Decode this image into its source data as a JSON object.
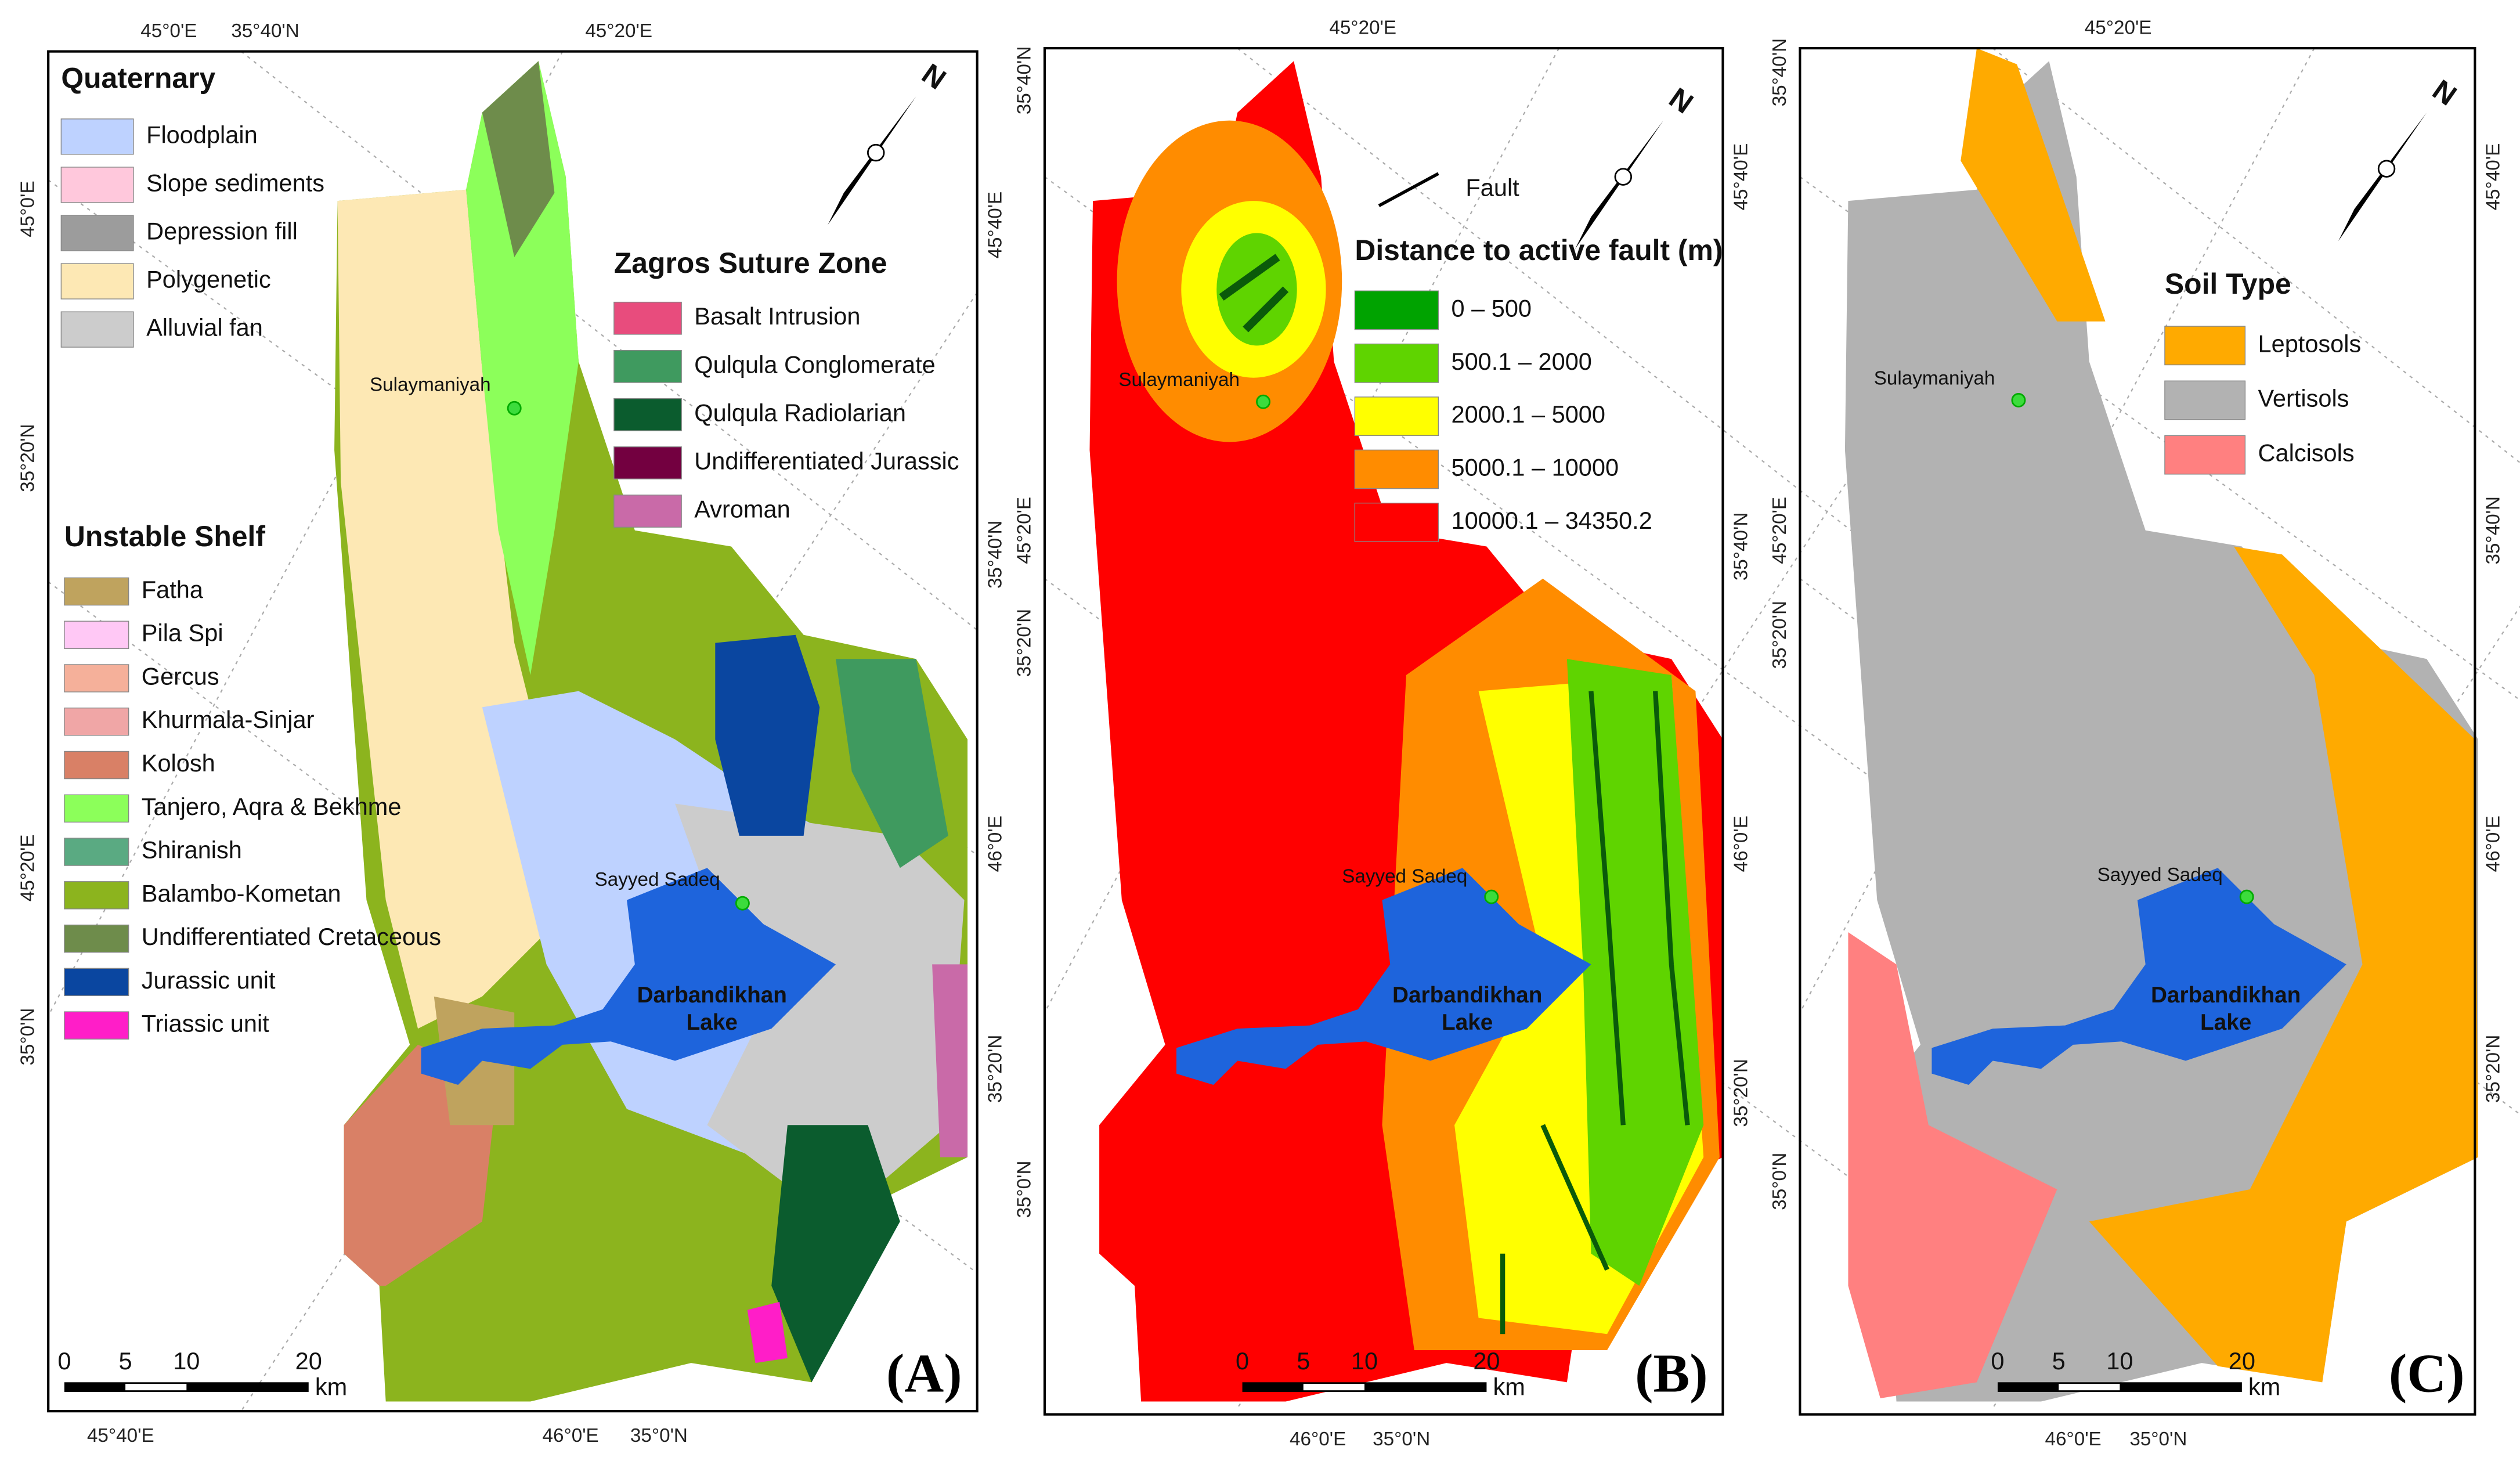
{
  "panels": [
    {
      "letter": "(A)",
      "coords": {
        "top": [
          "45°0'E",
          "35°40'N",
          "45°20'E"
        ],
        "bottom": [
          "45°40'E",
          "46°0'E",
          "35°0'N"
        ],
        "left": [
          "45°0'E",
          "35°20'N",
          "45°20'E",
          "35°0'N"
        ],
        "right": [
          "45°40'E",
          "35°40'N",
          "46°0'E",
          "35°20'N"
        ]
      },
      "north": "N",
      "places": [
        "Sulaymaniyah",
        "Sayyed Sadeq"
      ],
      "lake": [
        "Darbandikhan",
        "Lake"
      ],
      "scale": [
        "0",
        "5",
        "10",
        "20",
        "km"
      ],
      "legends": [
        {
          "title": "Quaternary",
          "items": [
            {
              "name": "Floodplain",
              "color": "#bed2ff"
            },
            {
              "name": "Slope sediments",
              "color": "#ffc8dc"
            },
            {
              "name": "Depression fill",
              "color": "#9c9c9c"
            },
            {
              "name": "Polygenetic",
              "color": "#fde8b4"
            },
            {
              "name": "Alluvial fan",
              "color": "#cccccc"
            }
          ]
        },
        {
          "title": "Zagros Suture Zone",
          "items": [
            {
              "name": "Basalt Intrusion",
              "color": "#e84c7d"
            },
            {
              "name": "Qulqula Conglomerate",
              "color": "#3f9a5f"
            },
            {
              "name": "Qulqula Radiolarian",
              "color": "#0b5c2e"
            },
            {
              "name": "Undifferentiated Jurassic",
              "color": "#730040"
            },
            {
              "name": "Avroman",
              "color": "#c96aa8"
            }
          ]
        },
        {
          "title": "Unstable Shelf",
          "items": [
            {
              "name": "Fatha",
              "color": "#bfa35e"
            },
            {
              "name": "Pila Spi",
              "color": "#ffc8f5"
            },
            {
              "name": "Gercus",
              "color": "#f5b09a"
            },
            {
              "name": "Khurmala-Sinjar",
              "color": "#f0a6a6"
            },
            {
              "name": "Kolosh",
              "color": "#d98066"
            },
            {
              "name": "Tanjero, Aqra & Bekhme",
              "color": "#8cff5a"
            },
            {
              "name": "Shiranish",
              "color": "#5aaa82"
            },
            {
              "name": "Balambo-Kometan",
              "color": "#8cb41e"
            },
            {
              "name": "Undifferentiated Cretaceous",
              "color": "#6e8c4b"
            },
            {
              "name": "Jurassic unit",
              "color": "#0a46a0"
            },
            {
              "name": "Triassic unit",
              "color": "#ff1ec8"
            }
          ]
        }
      ]
    },
    {
      "letter": "(B)",
      "coords": {
        "top": [
          "45°20'E"
        ],
        "bottom": [
          "46°0'E",
          "35°0'N"
        ],
        "left": [
          "35°40'N",
          "45°20'E",
          "35°20'N",
          "35°0'N"
        ],
        "right": [
          "45°40'E",
          "35°40'N",
          "46°0'E",
          "35°20'N"
        ]
      },
      "north": "N",
      "places": [
        "Sulaymaniyah",
        "Sayyed Sadeq"
      ],
      "lake": [
        "Darbandikhan",
        "Lake"
      ],
      "scale": [
        "0",
        "5",
        "10",
        "20",
        "km"
      ],
      "fault": "Fault",
      "legends": [
        {
          "title": "Distance to active fault (m)",
          "items": [
            {
              "name": "0 – 500",
              "color": "#00a300"
            },
            {
              "name": "500.1 – 2000",
              "color": "#5fd400"
            },
            {
              "name": "2000.1 – 5000",
              "color": "#ffff00"
            },
            {
              "name": "5000.1 – 10000",
              "color": "#ff8c00"
            },
            {
              "name": "10000.1 – 34350.2",
              "color": "#ff0000"
            }
          ]
        }
      ]
    },
    {
      "letter": "(C)",
      "coords": {
        "top": [
          "45°20'E"
        ],
        "bottom": [
          "46°0'E",
          "35°0'N"
        ],
        "left": [
          "35°40'N",
          "45°20'E",
          "35°20'N",
          "35°0'N"
        ],
        "right": [
          "45°40'E",
          "35°40'N",
          "46°0'E",
          "35°20'N"
        ]
      },
      "north": "N",
      "places": [
        "Sulaymaniyah",
        "Sayyed Sadeq"
      ],
      "lake": [
        "Darbandikhan",
        "Lake"
      ],
      "scale": [
        "0",
        "5",
        "10",
        "20",
        "km"
      ],
      "legends": [
        {
          "title": "Soil Type",
          "items": [
            {
              "name": "Leptosols",
              "color": "#ffaa00"
            },
            {
              "name": "Vertisols",
              "color": "#b2b2b2"
            },
            {
              "name": "Calcisols",
              "color": "#ff8080"
            }
          ]
        }
      ]
    }
  ]
}
